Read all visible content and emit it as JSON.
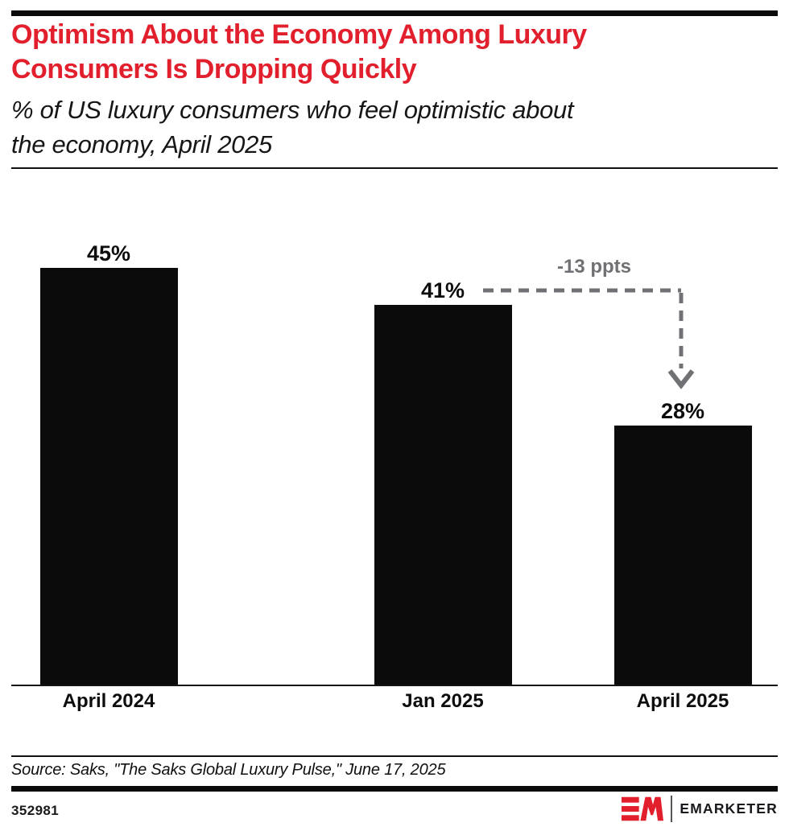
{
  "page": {
    "header": {
      "title_lines": [
        "Optimism About the Economy Among Luxury",
        "Consumers Is Dropping Quickly"
      ],
      "subtitle_lines": [
        "% of US luxury consumers who feel optimistic about",
        "the economy, April 2025"
      ]
    },
    "source": {
      "text": "Source: Saks, \"The Saks Global Luxury Pulse,\" June 17, 2025"
    },
    "footer": {
      "chart_id": "352981",
      "brand": {
        "mark": "EM",
        "name": "EMARKETER"
      }
    },
    "colors": {
      "brand_red": "#e21f2c",
      "bar_black": "#0b0b0b",
      "annotation_gray": "#707174"
    }
  },
  "chart_data": {
    "type": "bar",
    "title": "Optimism About the Economy Among Luxury Consumers Is Dropping Quickly",
    "subtitle": "% of US luxury consumers who feel optimistic about the economy, April 2025",
    "categories": [
      "April 2024",
      "Jan 2025",
      "April 2025"
    ],
    "values": [
      45,
      41,
      28
    ],
    "value_labels": [
      "45%",
      "41%",
      "28%"
    ],
    "unit": "%",
    "ylim": [
      0,
      45
    ],
    "grid": false,
    "y_axis": "hidden",
    "legend": "none",
    "bar_color": "#0b0b0b",
    "annotation": {
      "label": "-13 ppts",
      "delta_ppts": -13,
      "from_category": "Jan 2025",
      "to_category": "April 2025"
    }
  }
}
